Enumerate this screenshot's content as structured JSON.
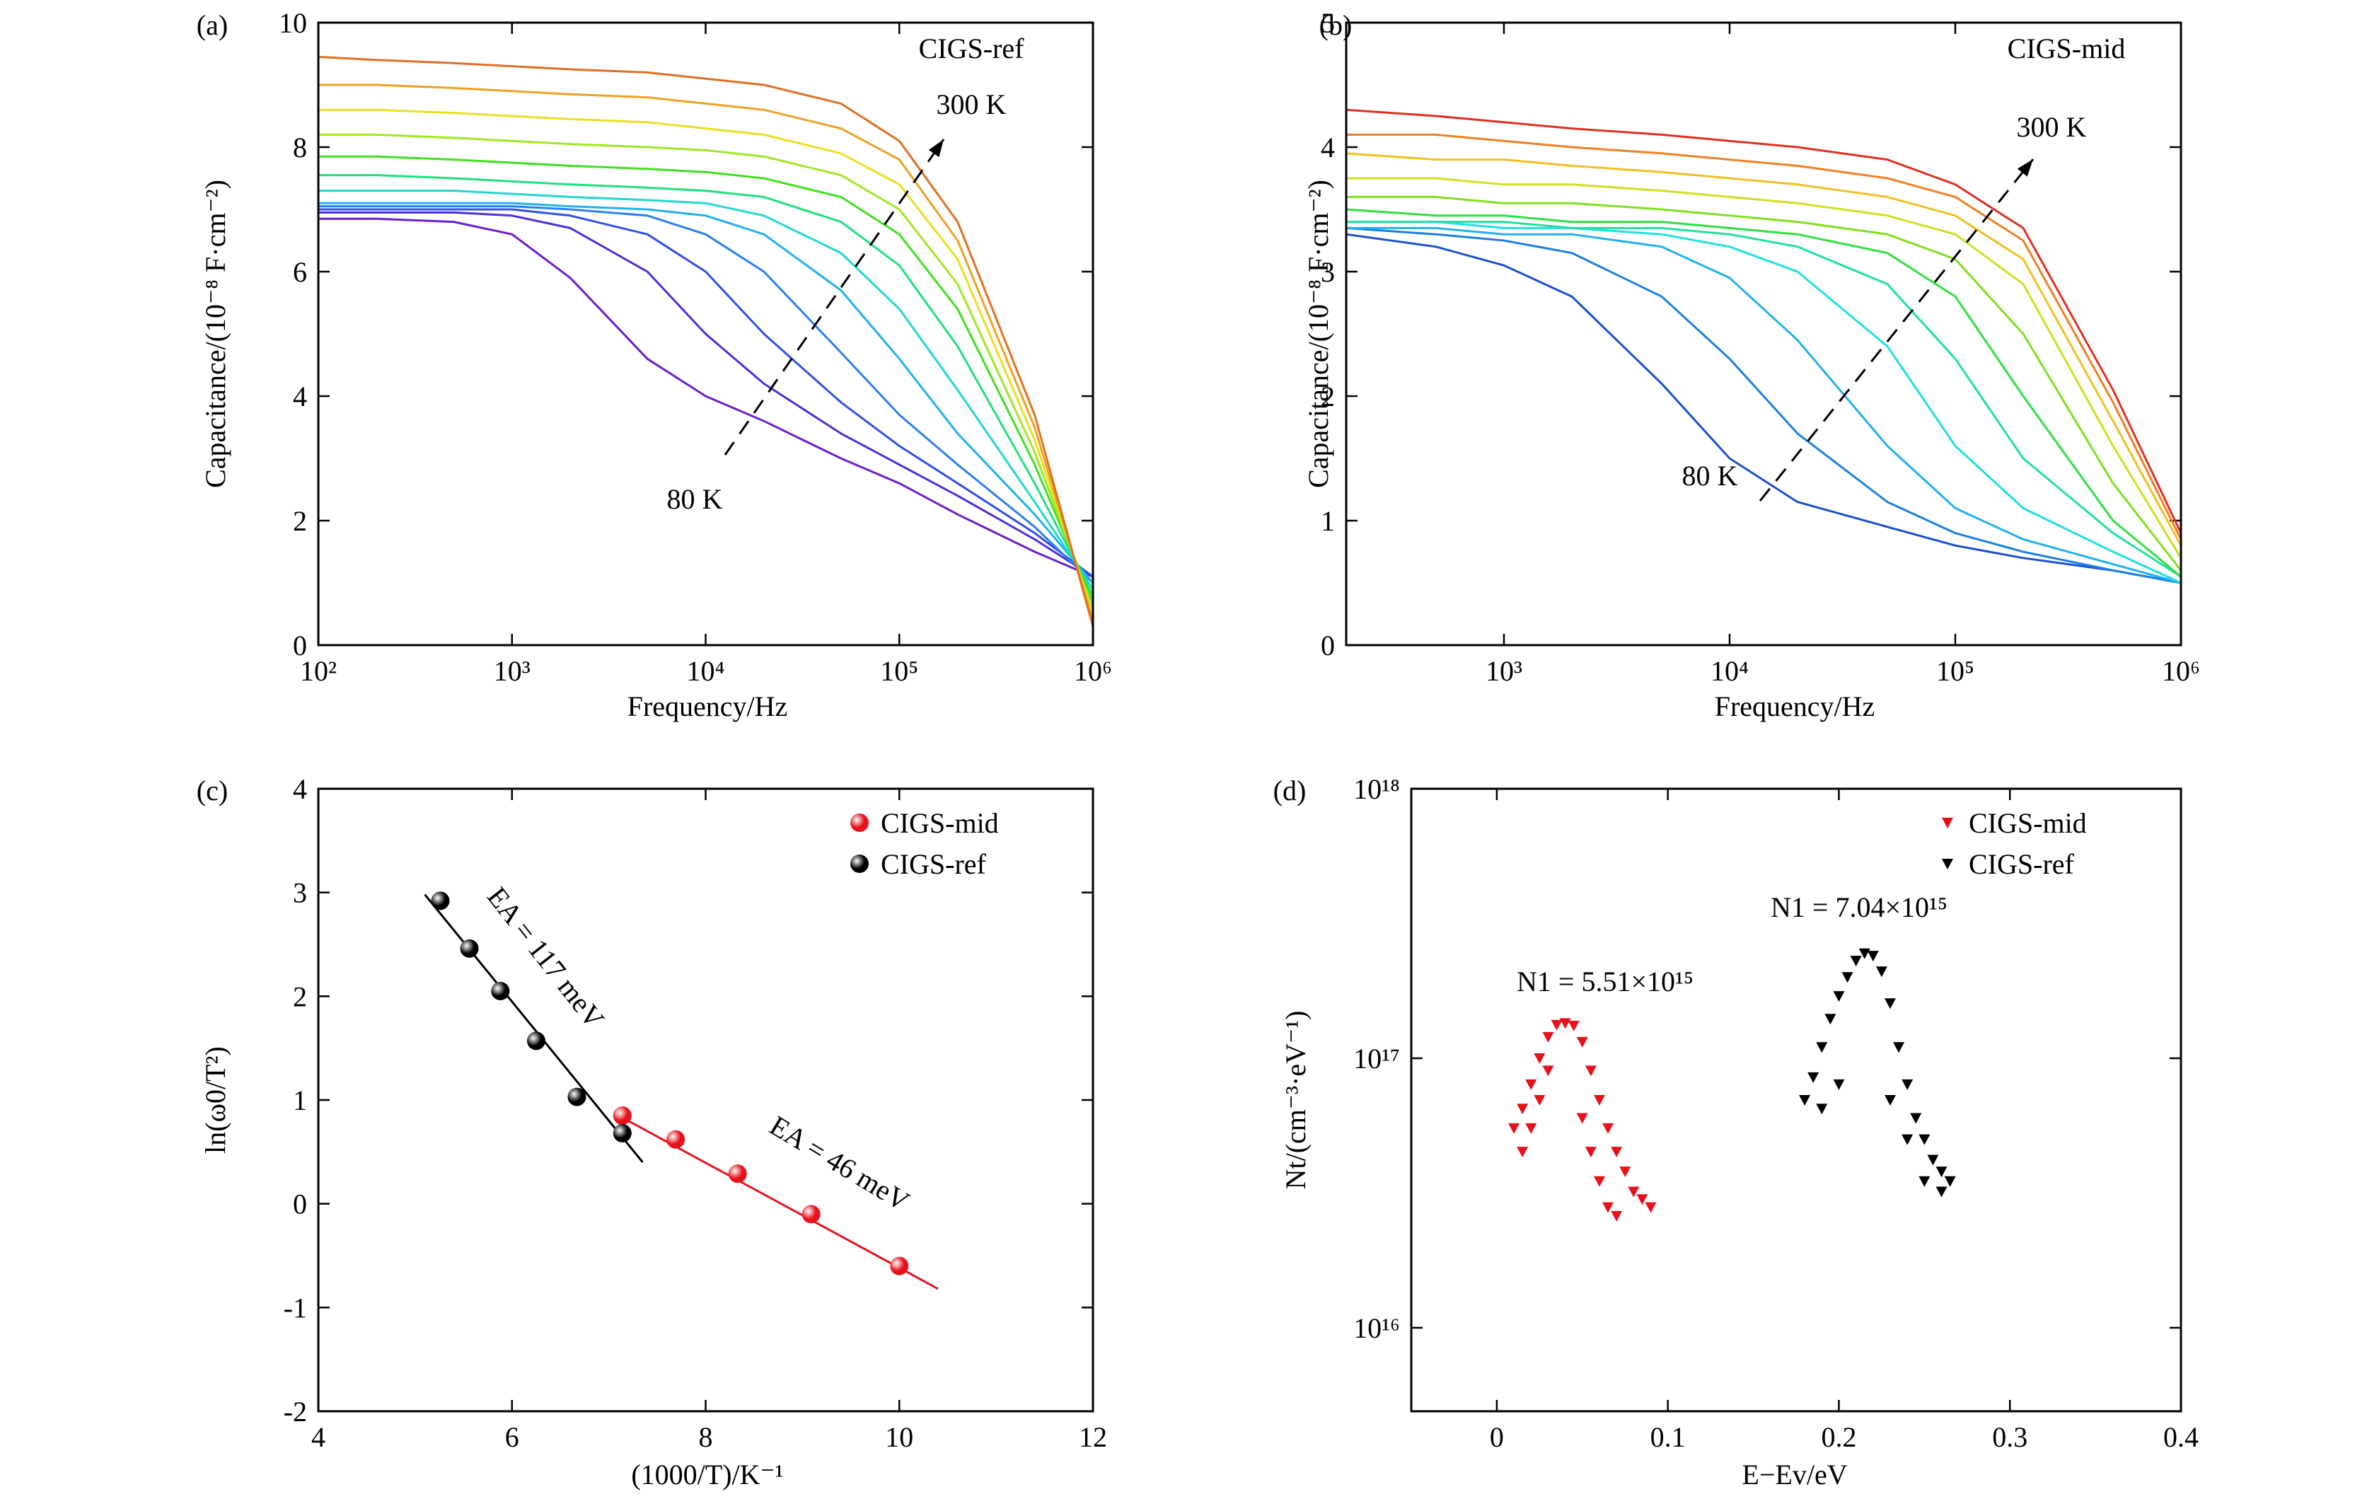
{
  "chart_data": [
    {
      "type": "line",
      "panel_label": "(a)",
      "xlabel": "Frequency/Hz",
      "ylabel": "Capacitance/(10⁻⁸ F·cm⁻²)",
      "xscale": "log",
      "xlim": [
        100,
        1000000
      ],
      "ylim": [
        0,
        10
      ],
      "xticks": [
        {
          "value": 100,
          "label": "10²"
        },
        {
          "value": 1000,
          "label": "10³"
        },
        {
          "value": 10000,
          "label": "10⁴"
        },
        {
          "value": 100000,
          "label": "10⁵"
        },
        {
          "value": 1000000,
          "label": "10⁶"
        }
      ],
      "yticks": [
        0,
        2,
        4,
        6,
        8,
        10
      ],
      "annotations": [
        {
          "text": "CIGS-ref",
          "color": "#000000"
        },
        {
          "text": "300 K",
          "color": "#000000"
        },
        {
          "text": "80 K",
          "color": "#000000"
        }
      ],
      "x": [
        100,
        200,
        500,
        1000,
        2000,
        5000,
        10000,
        20000,
        50000,
        100000,
        200000,
        500000,
        1000000
      ],
      "series": [
        {
          "color": "#6a1fd0",
          "values": [
            6.85,
            6.85,
            6.8,
            6.6,
            5.9,
            4.6,
            4.0,
            3.6,
            3.0,
            2.6,
            2.1,
            1.5,
            1.1
          ]
        },
        {
          "color": "#4b2fe0",
          "values": [
            6.95,
            6.95,
            6.95,
            6.9,
            6.7,
            6.0,
            5.0,
            4.2,
            3.4,
            2.9,
            2.4,
            1.7,
            1.1
          ]
        },
        {
          "color": "#3050e8",
          "values": [
            7.0,
            7.0,
            7.0,
            7.0,
            6.9,
            6.6,
            6.0,
            5.0,
            3.9,
            3.2,
            2.6,
            1.8,
            1.1
          ]
        },
        {
          "color": "#2a80f0",
          "values": [
            7.05,
            7.05,
            7.05,
            7.05,
            7.0,
            6.9,
            6.6,
            6.0,
            4.7,
            3.7,
            2.9,
            1.9,
            1.0
          ]
        },
        {
          "color": "#20b0f0",
          "values": [
            7.1,
            7.1,
            7.1,
            7.1,
            7.05,
            7.0,
            6.9,
            6.6,
            5.7,
            4.6,
            3.4,
            2.1,
            1.0
          ]
        },
        {
          "color": "#20d8d0",
          "values": [
            7.3,
            7.3,
            7.3,
            7.25,
            7.2,
            7.15,
            7.1,
            6.9,
            6.3,
            5.4,
            4.1,
            2.3,
            0.9
          ]
        },
        {
          "color": "#20e080",
          "values": [
            7.55,
            7.55,
            7.5,
            7.45,
            7.4,
            7.35,
            7.3,
            7.2,
            6.8,
            6.1,
            4.8,
            2.6,
            0.8
          ]
        },
        {
          "color": "#40e020",
          "values": [
            7.85,
            7.85,
            7.8,
            7.75,
            7.7,
            7.65,
            7.6,
            7.5,
            7.2,
            6.6,
            5.4,
            2.9,
            0.7
          ]
        },
        {
          "color": "#a0e820",
          "values": [
            8.2,
            8.2,
            8.15,
            8.1,
            8.05,
            8.0,
            7.95,
            7.85,
            7.55,
            7.0,
            5.8,
            3.1,
            0.6
          ]
        },
        {
          "color": "#e8e020",
          "values": [
            8.6,
            8.6,
            8.55,
            8.5,
            8.45,
            8.4,
            8.3,
            8.2,
            7.9,
            7.4,
            6.2,
            3.3,
            0.5
          ]
        },
        {
          "color": "#f0a020",
          "values": [
            9.0,
            9.0,
            8.95,
            8.9,
            8.85,
            8.8,
            8.7,
            8.6,
            8.3,
            7.8,
            6.5,
            3.5,
            0.4
          ]
        },
        {
          "color": "#e07020",
          "values": [
            9.45,
            9.4,
            9.35,
            9.3,
            9.25,
            9.2,
            9.1,
            9.0,
            8.7,
            8.1,
            6.8,
            3.7,
            0.3
          ]
        }
      ]
    },
    {
      "type": "line",
      "panel_label": "(b)",
      "xlabel": "Frequency/Hz",
      "ylabel": "Capacitance/(10⁻⁸ F·cm⁻²)",
      "xscale": "log",
      "xlim": [
        200,
        1000000
      ],
      "ylim": [
        0,
        5
      ],
      "xticks": [
        {
          "value": 1000,
          "label": "10³"
        },
        {
          "value": 10000,
          "label": "10⁴"
        },
        {
          "value": 100000,
          "label": "10⁵"
        },
        {
          "value": 1000000,
          "label": "10⁶"
        }
      ],
      "yticks": [
        0,
        1,
        2,
        3,
        4,
        5
      ],
      "annotations": [
        {
          "text": "CIGS-mid",
          "color": "#000000"
        },
        {
          "text": "300 K",
          "color": "#000000"
        },
        {
          "text": "80 K",
          "color": "#000000"
        }
      ],
      "x": [
        200,
        500,
        1000,
        2000,
        5000,
        10000,
        20000,
        50000,
        100000,
        200000,
        500000,
        1000000
      ],
      "series": [
        {
          "color": "#1a50d0",
          "values": [
            3.3,
            3.2,
            3.05,
            2.8,
            2.1,
            1.5,
            1.15,
            0.95,
            0.8,
            0.7,
            0.6,
            0.5
          ]
        },
        {
          "color": "#1a80e0",
          "values": [
            3.35,
            3.3,
            3.25,
            3.15,
            2.8,
            2.3,
            1.7,
            1.15,
            0.9,
            0.75,
            0.6,
            0.5
          ]
        },
        {
          "color": "#20b0f0",
          "values": [
            3.35,
            3.35,
            3.3,
            3.3,
            3.2,
            2.95,
            2.45,
            1.6,
            1.1,
            0.85,
            0.65,
            0.5
          ]
        },
        {
          "color": "#20e0e0",
          "values": [
            3.4,
            3.4,
            3.35,
            3.35,
            3.3,
            3.2,
            3.0,
            2.4,
            1.6,
            1.1,
            0.75,
            0.5
          ]
        },
        {
          "color": "#20e0a0",
          "values": [
            3.4,
            3.4,
            3.4,
            3.35,
            3.35,
            3.3,
            3.2,
            2.9,
            2.3,
            1.5,
            0.9,
            0.55
          ]
        },
        {
          "color": "#30e040",
          "values": [
            3.5,
            3.45,
            3.45,
            3.4,
            3.4,
            3.35,
            3.3,
            3.15,
            2.8,
            2.0,
            1.0,
            0.55
          ]
        },
        {
          "color": "#80e020",
          "values": [
            3.6,
            3.6,
            3.55,
            3.55,
            3.5,
            3.45,
            3.4,
            3.3,
            3.1,
            2.5,
            1.3,
            0.6
          ]
        },
        {
          "color": "#d0e020",
          "values": [
            3.75,
            3.75,
            3.7,
            3.7,
            3.65,
            3.6,
            3.55,
            3.45,
            3.3,
            2.9,
            1.6,
            0.7
          ]
        },
        {
          "color": "#f0c020",
          "values": [
            3.95,
            3.9,
            3.9,
            3.85,
            3.8,
            3.75,
            3.7,
            3.6,
            3.45,
            3.1,
            1.8,
            0.8
          ]
        },
        {
          "color": "#f08020",
          "values": [
            4.1,
            4.1,
            4.05,
            4.0,
            3.95,
            3.9,
            3.85,
            3.75,
            3.6,
            3.25,
            1.95,
            0.85
          ]
        },
        {
          "color": "#e03020",
          "values": [
            4.3,
            4.25,
            4.2,
            4.15,
            4.1,
            4.05,
            4.0,
            3.9,
            3.7,
            3.35,
            2.05,
            0.9
          ]
        }
      ]
    },
    {
      "type": "scatter",
      "panel_label": "(c)",
      "xlabel": "(1000/T)/K⁻¹",
      "ylabel": "ln(ω0/T²)",
      "marker": "ball",
      "legend": "upper right",
      "xlim": [
        4,
        12
      ],
      "ylim": [
        -2,
        4
      ],
      "xticks": [
        4,
        6,
        8,
        10,
        12
      ],
      "yticks": [
        -2,
        -1,
        0,
        1,
        2,
        3,
        4
      ],
      "annotations": [
        {
          "text": "EA = 117 meV",
          "color": "#000000"
        },
        {
          "text": "EA = 46 meV",
          "color": "#e8101a"
        }
      ],
      "series": [
        {
          "name": "CIGS-mid",
          "color": "#e8101a",
          "x": [
            7.14,
            7.69,
            8.33,
            9.09,
            10.0
          ],
          "values": [
            0.85,
            0.62,
            0.29,
            -0.1,
            -0.6
          ]
        },
        {
          "name": "CIGS-ref",
          "color": "#000000",
          "x": [
            5.26,
            5.56,
            5.88,
            6.25,
            6.67,
            7.14
          ],
          "values": [
            2.92,
            2.46,
            2.05,
            1.57,
            1.03,
            0.68
          ]
        }
      ],
      "fits": [
        {
          "color": "#e8101a",
          "x": [
            7.1,
            10.4
          ],
          "values": [
            0.85,
            -0.82
          ]
        },
        {
          "color": "#000000",
          "x": [
            5.1,
            7.35
          ],
          "values": [
            2.98,
            0.4
          ]
        }
      ]
    },
    {
      "type": "scatter",
      "panel_label": "(d)",
      "xlabel": "E−Ev/eV",
      "ylabel": "Nt/(cm⁻³·eV⁻¹)",
      "marker": "triangle",
      "legend": "upper right",
      "yscale": "log",
      "xlim": [
        -0.05,
        0.4
      ],
      "ylim": [
        4900000000000000.0,
        1e+18
      ],
      "xticks": [
        0,
        0.1,
        0.2,
        0.3,
        0.4
      ],
      "yticks": [
        {
          "value": 1e+16,
          "label": "10¹⁶"
        },
        {
          "value": 1e+17,
          "label": "10¹⁷"
        },
        {
          "value": 1e+18,
          "label": "10¹⁸"
        }
      ],
      "annotations": [
        {
          "text": "N1 = 5.51×10¹⁵",
          "color": "#e8101a"
        },
        {
          "text": "N1 = 7.04×10¹⁵",
          "color": "#000000"
        }
      ],
      "series": [
        {
          "name": "CIGS-mid",
          "color": "#e8101a",
          "x": [
            0.01,
            0.015,
            0.02,
            0.025,
            0.03,
            0.035,
            0.04,
            0.045,
            0.05,
            0.055,
            0.06,
            0.065,
            0.07,
            0.075,
            0.08,
            0.085,
            0.09,
            0.015,
            0.02,
            0.025,
            0.03,
            0.05,
            0.055,
            0.06,
            0.065,
            0.07
          ],
          "values": [
            5.5e+16,
            6.5e+16,
            8e+16,
            1e+17,
            1.2e+17,
            1.33e+17,
            1.35e+17,
            1.32e+17,
            1.15e+17,
            9e+16,
            7e+16,
            5.5e+16,
            4.5e+16,
            3.8e+16,
            3.2e+16,
            3e+16,
            2.8e+16,
            4.5e+16,
            5.5e+16,
            7e+16,
            9e+16,
            6e+16,
            4.5e+16,
            3.5e+16,
            2.8e+16,
            2.6e+16
          ]
        },
        {
          "name": "CIGS-ref",
          "color": "#000000",
          "x": [
            0.18,
            0.185,
            0.19,
            0.195,
            0.2,
            0.205,
            0.21,
            0.215,
            0.22,
            0.225,
            0.23,
            0.235,
            0.24,
            0.245,
            0.25,
            0.255,
            0.26,
            0.265,
            0.19,
            0.2,
            0.23,
            0.24,
            0.25,
            0.26
          ],
          "values": [
            7e+16,
            8.5e+16,
            1.1e+17,
            1.4e+17,
            1.7e+17,
            2e+17,
            2.3e+17,
            2.45e+17,
            2.4e+17,
            2.1e+17,
            1.6e+17,
            1.1e+17,
            8e+16,
            6e+16,
            5e+16,
            4.2e+16,
            3.8e+16,
            3.5e+16,
            6.5e+16,
            8e+16,
            7e+16,
            5e+16,
            3.5e+16,
            3.2e+16
          ]
        }
      ]
    }
  ]
}
